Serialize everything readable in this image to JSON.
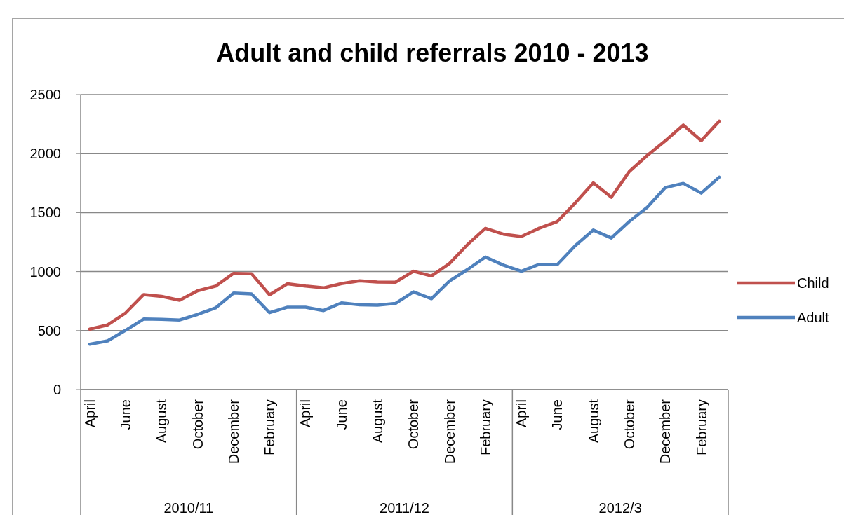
{
  "chart_data": {
    "type": "line",
    "title": "Adult and child referrals 2010 - 2013",
    "categories": [
      "April",
      null,
      "June",
      null,
      "August",
      null,
      "October",
      null,
      "December",
      null,
      "February",
      null,
      "April",
      null,
      "June",
      null,
      "August",
      null,
      "October",
      null,
      "December",
      null,
      "February",
      null,
      "April",
      null,
      "June",
      null,
      "August",
      null,
      "October",
      null,
      "December",
      null,
      "February",
      null
    ],
    "series": [
      {
        "name": "Child",
        "color": "#c0504d",
        "values": [
          512,
          548,
          650,
          805,
          790,
          757,
          837,
          877,
          985,
          982,
          803,
          897,
          877,
          862,
          898,
          922,
          912,
          910,
          1003,
          963,
          1068,
          1228,
          1367,
          1317,
          1297,
          1368,
          1425,
          1582,
          1752,
          1630,
          1848,
          1985,
          2108,
          2242,
          2110,
          2275
        ]
      },
      {
        "name": "Adult",
        "color": "#4f81bd",
        "values": [
          385,
          413,
          503,
          598,
          595,
          590,
          637,
          692,
          818,
          810,
          652,
          698,
          698,
          670,
          735,
          718,
          715,
          730,
          828,
          770,
          920,
          1017,
          1123,
          1055,
          1003,
          1062,
          1060,
          1220,
          1352,
          1285,
          1425,
          1545,
          1712,
          1748,
          1665,
          1800
        ]
      }
    ],
    "annotations": [
      "2010/11",
      "2011/12",
      "2012/3"
    ],
    "ylim": [
      0,
      2500
    ],
    "yticks": [
      0,
      500,
      1000,
      1500,
      2000,
      2500
    ],
    "grid": "y",
    "legend": "right",
    "marker": "none",
    "line_style": "solid"
  }
}
